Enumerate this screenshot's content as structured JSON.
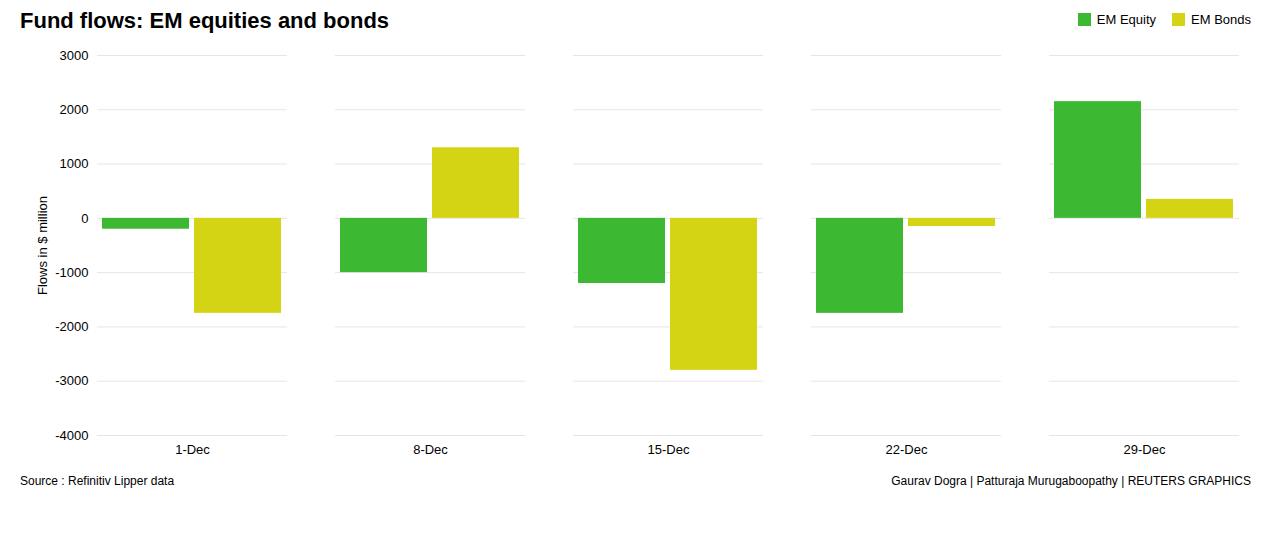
{
  "chart_data": {
    "type": "bar",
    "title": "Fund flows: EM equities and bonds",
    "categories": [
      "1-Dec",
      "8-Dec",
      "15-Dec",
      "22-Dec",
      "29-Dec"
    ],
    "series": [
      {
        "name": "EM Equity",
        "color": "#3cb832",
        "values": [
          -200,
          -1000,
          -1200,
          -1750,
          2150
        ]
      },
      {
        "name": "EM Bonds",
        "color": "#d4d414",
        "values": [
          -1750,
          1300,
          -2800,
          -150,
          350
        ]
      }
    ],
    "ylabel": "Flows in $ million",
    "ylim": [
      -4000,
      3000
    ],
    "yticks": [
      -4000,
      -3000,
      -2000,
      -1000,
      0,
      1000,
      2000,
      3000
    ],
    "grid": true,
    "legend": "upper right",
    "annotations": [
      "Source : Refinitiv Lipper data",
      "Gaurav Dogra | Patturaja Murugaboopathy | REUTERS GRAPHICS"
    ]
  }
}
